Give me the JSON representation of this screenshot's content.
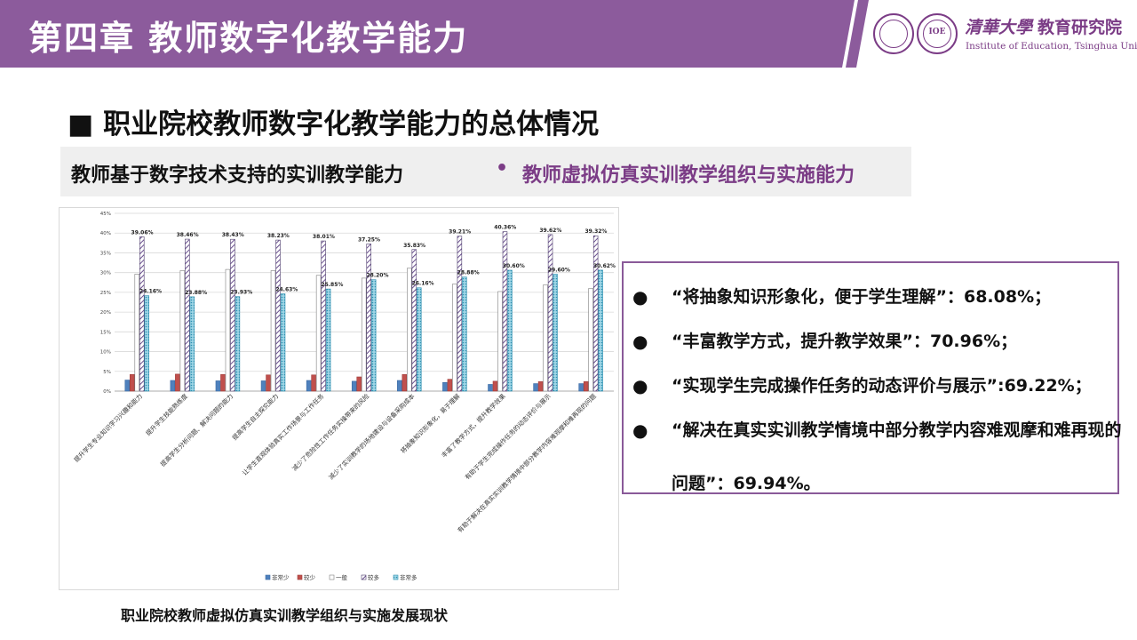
{
  "header": {
    "title": "第四章  教师数字化教学能力",
    "institute_cn": "教育研究院",
    "university_cn": "清華大學",
    "institute_en": "Institute of Education, Tsinghua University",
    "logo2_text": "IOE",
    "colors": {
      "bar": "#8c5b9c",
      "accent": "#7b3c86"
    }
  },
  "section_title": "■ 职业院校教师数字化教学能力的总体情况",
  "subtitle": {
    "left": "教师基于数字技术支持的实训教学能力",
    "dot": "•",
    "right": "教师虚拟仿真实训教学组织与实施能力"
  },
  "chart_caption": "职业院校教师虚拟仿真实训教学组织与实施发展现状",
  "bullets": [
    {
      "marker": "●",
      "text": "“将抽象知识形象化，便于学生理解”：68.08%；"
    },
    {
      "marker": "●",
      "text": "“丰富教学方式，提升教学效果”：70.96%；"
    },
    {
      "marker": "●",
      "text": "“实现学生完成操作任务的动态评价与展示”:69.22%；"
    },
    {
      "marker": "●",
      "text": "“解决在真实实训教学情境中部分教学内容难观摩和难再现的问题”：69.94%。"
    }
  ],
  "chart_data": {
    "type": "bar",
    "title": "",
    "xlabel": "",
    "ylabel": "",
    "ylim": [
      0,
      45
    ],
    "yticks": [
      "0%",
      "5%",
      "10%",
      "15%",
      "20%",
      "25%",
      "30%",
      "35%",
      "40%",
      "45%"
    ],
    "grid": true,
    "legend_position": "bottom",
    "categories": [
      "提升学生专业知识学习兴趣和能力",
      "提升学生技能熟练度",
      "提高学生分析问题、解决问题的能力",
      "提高学生自主探究能力",
      "让学生直观体验真实工作场景与工作任务",
      "减少了危险性工作任务实操带来的风险",
      "减少了实训教学的场地建设与设备采购成本",
      "将抽象知识形象化，易于理解",
      "丰富了教学方式，提升教学效果",
      "有助于学生完成操作任务的动态评价与展示",
      "有助于解决在真实实训教学情境中部分教学内容难观摩和难再现的问题"
    ],
    "series": [
      {
        "name": "非常少",
        "color": "#4f81bd",
        "values": [
          2.8,
          2.7,
          2.6,
          2.6,
          2.7,
          2.5,
          2.7,
          2.2,
          1.7,
          1.9,
          1.9
        ]
      },
      {
        "name": "较少",
        "color": "#c0504d",
        "values": [
          4.2,
          4.3,
          4.2,
          4.1,
          4.1,
          3.6,
          4.2,
          3.0,
          2.5,
          2.4,
          2.4
        ]
      },
      {
        "name": "一般",
        "color": "#ffffff",
        "values": [
          29.6,
          30.5,
          30.8,
          30.5,
          29.3,
          28.6,
          31.1,
          27.1,
          25.2,
          26.9,
          26.0
        ]
      },
      {
        "name": "较多",
        "color": "#8064a2",
        "values": [
          39.06,
          38.46,
          38.43,
          38.23,
          38.01,
          37.25,
          35.83,
          39.21,
          40.36,
          39.62,
          39.32
        ],
        "labels": [
          "39.06%",
          "38.46%",
          "38.43%",
          "38.23%",
          "38.01%",
          "37.25%",
          "35.83%",
          "39.21%",
          "40.36%",
          "39.62%",
          "39.32%"
        ]
      },
      {
        "name": "非常多",
        "color": "#4bacc6",
        "values": [
          24.16,
          23.88,
          23.93,
          24.63,
          25.85,
          28.2,
          26.16,
          28.88,
          30.6,
          29.6,
          30.62
        ],
        "labels": [
          "24.16%",
          "23.88%",
          "23.93%",
          "24.63%",
          "25.85%",
          "28.20%",
          "26.16%",
          "28.88%",
          "30.60%",
          "29.60%",
          "30.62%"
        ]
      }
    ]
  }
}
